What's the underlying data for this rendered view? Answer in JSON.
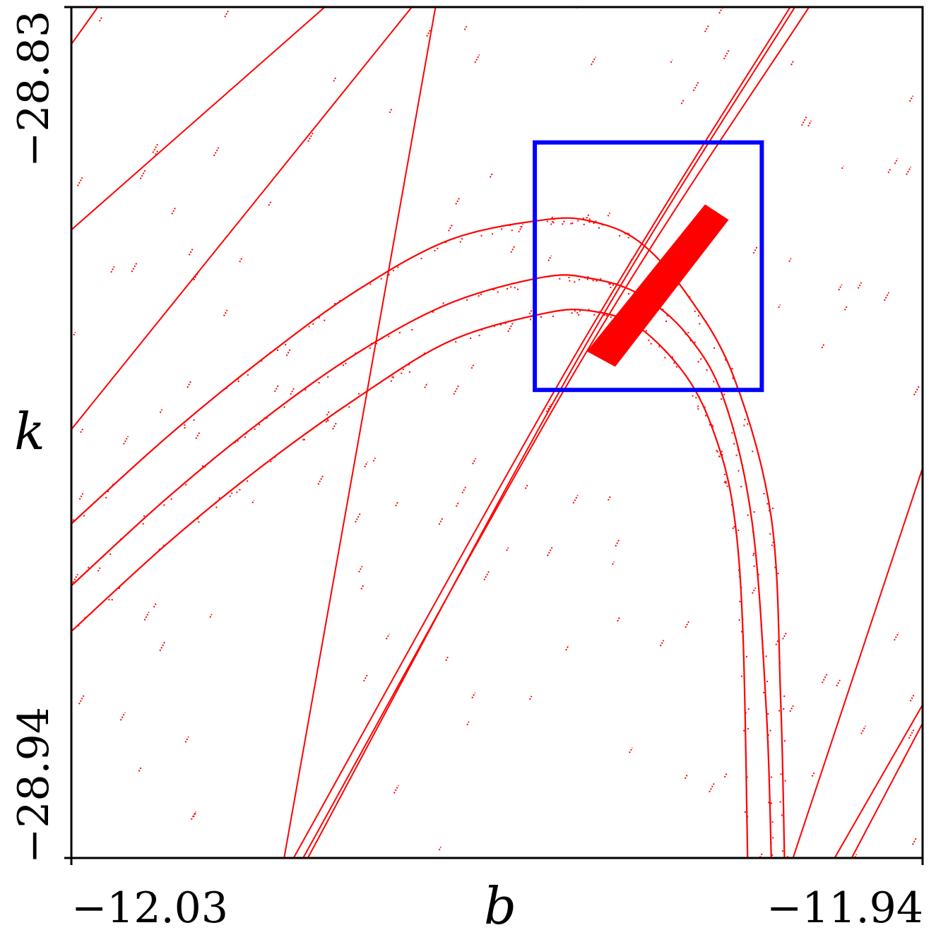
{
  "chart_data": {
    "type": "scatter",
    "title": "",
    "xlabel": "b",
    "ylabel": "k",
    "xlim": [
      -12.03,
      -11.94
    ],
    "ylim": [
      -28.94,
      -28.83
    ],
    "x_tick_labels": [
      "−12.03",
      "−11.94"
    ],
    "y_tick_labels": [
      "−28.94",
      "−28.83"
    ],
    "grid": false,
    "point_color": "#ff0000",
    "highlight_box": {
      "color": "#0000ff",
      "x_range": [
        -11.981,
        -11.957
      ],
      "y_range": [
        -28.8795,
        -28.8475
      ]
    },
    "series": [
      {
        "shape": "arch",
        "points": [
          [
            -12.03,
            -28.9107
          ],
          [
            -12.02,
            -28.8995
          ],
          [
            -12.01,
            -28.8895
          ],
          [
            -12.0,
            -28.8807
          ],
          [
            -11.99,
            -28.8732
          ],
          [
            -11.98,
            -28.8696
          ],
          [
            -11.975,
            -28.8693
          ],
          [
            -11.97,
            -28.8714
          ],
          [
            -11.965,
            -28.8777
          ],
          [
            -11.962,
            -28.8852
          ],
          [
            -11.96,
            -28.895
          ],
          [
            -11.959,
            -28.9107
          ],
          [
            -11.9585,
            -28.94
          ]
        ]
      },
      {
        "shape": "arch",
        "points": [
          [
            -12.03,
            -28.8968
          ],
          [
            -12.02,
            -28.8857
          ],
          [
            -12.01,
            -28.8757
          ],
          [
            -12.0,
            -28.8668
          ],
          [
            -11.99,
            -28.8601
          ],
          [
            -11.98,
            -28.8575
          ],
          [
            -11.975,
            -28.8577
          ],
          [
            -11.97,
            -28.8603
          ],
          [
            -11.965,
            -28.867
          ],
          [
            -11.96,
            -28.8777
          ],
          [
            -11.956,
            -28.896
          ],
          [
            -11.955,
            -28.9198
          ],
          [
            -11.9546,
            -28.94
          ]
        ]
      },
      {
        "shape": "arch",
        "points": [
          [
            -12.03,
            -28.9048
          ],
          [
            -12.02,
            -28.8936
          ],
          [
            -12.01,
            -28.8836
          ],
          [
            -12.0,
            -28.8749
          ],
          [
            -11.99,
            -28.8683
          ],
          [
            -11.98,
            -28.8649
          ],
          [
            -11.975,
            -28.8651
          ],
          [
            -11.97,
            -28.8671
          ],
          [
            -11.965,
            -28.8722
          ],
          [
            -11.961,
            -28.8807
          ],
          [
            -11.958,
            -28.8968
          ],
          [
            -11.9565,
            -28.9214
          ],
          [
            -11.956,
            -28.94
          ]
        ]
      },
      {
        "shape": "line",
        "points": [
          [
            -12.005,
            -28.94
          ],
          [
            -11.976,
            -28.8745
          ],
          [
            -11.9535,
            -28.83
          ]
        ]
      },
      {
        "shape": "line",
        "points": [
          [
            -12.0055,
            -28.94
          ],
          [
            -11.9755,
            -28.8745
          ],
          [
            -11.952,
            -28.83
          ]
        ]
      },
      {
        "shape": "line",
        "points": [
          [
            -12.0065,
            -28.94
          ],
          [
            -11.9765,
            -28.8745
          ],
          [
            -11.954,
            -28.83
          ]
        ]
      },
      {
        "shape": "line",
        "points": [
          [
            -12.03,
            -28.8846
          ],
          [
            -11.994,
            -28.83
          ]
        ]
      },
      {
        "shape": "line",
        "points": [
          [
            -12.03,
            -28.8588
          ],
          [
            -12.0032,
            -28.83
          ]
        ]
      },
      {
        "shape": "line",
        "points": [
          [
            -12.03,
            -28.8348
          ],
          [
            -12.0272,
            -28.83
          ]
        ]
      },
      {
        "shape": "line",
        "points": [
          [
            -11.9537,
            -28.94
          ],
          [
            -11.94,
            -28.8896
          ]
        ]
      },
      {
        "shape": "line",
        "points": [
          [
            -11.9493,
            -28.94
          ],
          [
            -11.94,
            -28.9202
          ]
        ]
      },
      {
        "shape": "line",
        "points": [
          [
            -11.9475,
            -28.94
          ],
          [
            -11.94,
            -28.9226
          ]
        ]
      },
      {
        "shape": "line",
        "points": [
          [
            -12.0075,
            -28.94
          ],
          [
            -11.9915,
            -28.83
          ]
        ]
      }
    ]
  }
}
